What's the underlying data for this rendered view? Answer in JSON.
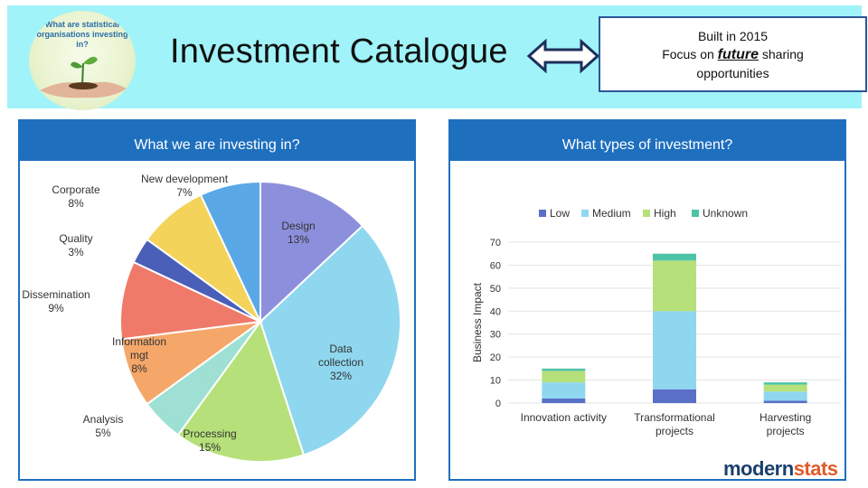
{
  "header": {
    "title": "Investment Catalogue",
    "logo_text": "What are statistical organisations investing in?",
    "callout": {
      "line1": "Built in 2015",
      "line2_prefix": "Focus on ",
      "line2_emph": "future",
      "line2_suffix": " sharing",
      "line3": "opportunities"
    }
  },
  "panels": {
    "left_title": "What we are investing in?",
    "right_title": "What types of investment?"
  },
  "brand": {
    "part1": "modern",
    "part2": "stats"
  },
  "colors": {
    "header_bg": "#9ff3f9",
    "panel_head": "#1f6fbf",
    "callout_border": "#2b5597"
  },
  "chart_data": [
    {
      "type": "pie",
      "title": "",
      "slices": [
        {
          "label": "Design",
          "value": 13,
          "color": "#8c8fdc"
        },
        {
          "label": "Data collection",
          "value": 32,
          "color": "#8fd7ef"
        },
        {
          "label": "Processing",
          "value": 15,
          "color": "#b6e07a"
        },
        {
          "label": "Analysis",
          "value": 5,
          "color": "#9fe0d4"
        },
        {
          "label": "Information mgt",
          "value": 8,
          "color": "#f5a76a"
        },
        {
          "label": "Dissemination",
          "value": 9,
          "color": "#ef7a6a"
        },
        {
          "label": "Quality",
          "value": 3,
          "color": "#4a5fb8"
        },
        {
          "label": "Corporate",
          "value": 8,
          "color": "#f3d35a"
        },
        {
          "label": "New development",
          "value": 7,
          "color": "#5aa9e6"
        }
      ],
      "label_lines": [
        [
          "Design",
          "13%"
        ],
        [
          "Data",
          "collection",
          "32%"
        ],
        [
          "Processing",
          "15%"
        ],
        [
          "Analysis",
          "5%"
        ],
        [
          "Information",
          "mgt",
          "8%"
        ],
        [
          "Dissemination",
          "9%"
        ],
        [
          "Quality",
          "3%"
        ],
        [
          "Corporate",
          "8%"
        ],
        [
          "New development",
          "7%"
        ]
      ]
    },
    {
      "type": "bar",
      "stacked": true,
      "ylabel": "Business Impact",
      "ylim": [
        0,
        70
      ],
      "yticks": [
        0,
        10,
        20,
        30,
        40,
        50,
        60,
        70
      ],
      "categories": [
        [
          "Innovation activity"
        ],
        [
          "Transformational",
          "projects"
        ],
        [
          "Harvesting",
          "projects"
        ]
      ],
      "series": [
        {
          "name": "Low",
          "values": [
            2,
            6,
            1
          ],
          "color": "#5a6fc8"
        },
        {
          "name": "Medium",
          "values": [
            7,
            34,
            4
          ],
          "color": "#8fd7ef"
        },
        {
          "name": "High",
          "values": [
            5,
            22,
            3
          ],
          "color": "#b6e07a"
        },
        {
          "name": "Unknown",
          "values": [
            1,
            3,
            1
          ],
          "color": "#4fc3a6"
        }
      ],
      "grid": true,
      "legend": "top"
    }
  ]
}
